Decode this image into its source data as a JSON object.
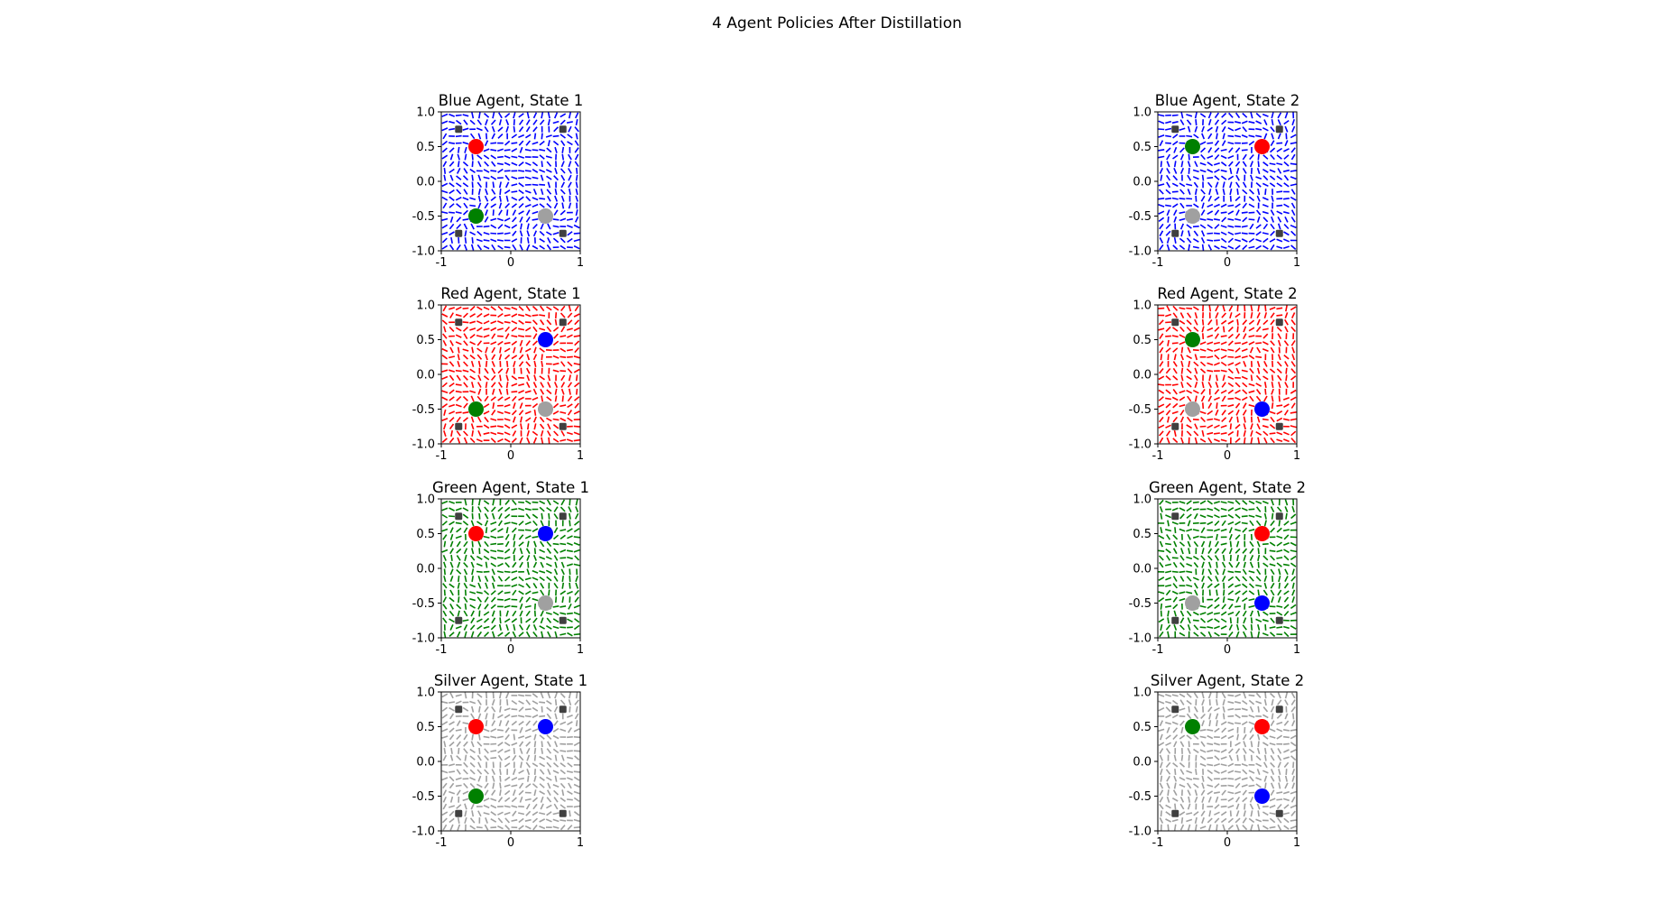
{
  "figure": {
    "title": "4 Agent Policies After Distillation",
    "colors": {
      "blue": "#0000ff",
      "red": "#ff0000",
      "green": "#008000",
      "silver": "#a0a0a0",
      "obstacle": "#404040"
    }
  },
  "chart_data": [
    {
      "type": "quiver",
      "title": "Blue Agent, State 1",
      "field_color": "blue",
      "xlim": [
        -1,
        1
      ],
      "ylim": [
        -1,
        1
      ],
      "xticks": [
        "-1",
        "0",
        "1"
      ],
      "yticks": [
        "1.0",
        "0.5",
        "0.0",
        "-0.5",
        "-1.0"
      ],
      "agents": [
        {
          "color": "red",
          "x": -0.5,
          "y": 0.5
        },
        {
          "color": "green",
          "x": -0.5,
          "y": -0.5
        },
        {
          "color": "silver",
          "x": 0.5,
          "y": -0.5
        }
      ],
      "obstacles": [
        [
          -0.75,
          0.75
        ],
        [
          0.75,
          0.75
        ],
        [
          -0.75,
          -0.75
        ],
        [
          0.75,
          -0.75
        ]
      ]
    },
    {
      "type": "quiver",
      "title": "Blue Agent, State 2",
      "field_color": "blue",
      "xlim": [
        -1,
        1
      ],
      "ylim": [
        -1,
        1
      ],
      "xticks": [
        "-1",
        "0",
        "1"
      ],
      "yticks": [
        "1.0",
        "0.5",
        "0.0",
        "-0.5",
        "-1.0"
      ],
      "agents": [
        {
          "color": "green",
          "x": -0.5,
          "y": 0.5
        },
        {
          "color": "red",
          "x": 0.5,
          "y": 0.5
        },
        {
          "color": "silver",
          "x": -0.5,
          "y": -0.5
        }
      ],
      "obstacles": [
        [
          -0.75,
          0.75
        ],
        [
          0.75,
          0.75
        ],
        [
          -0.75,
          -0.75
        ],
        [
          0.75,
          -0.75
        ]
      ]
    },
    {
      "type": "quiver",
      "title": "Red Agent, State 1",
      "field_color": "red",
      "xlim": [
        -1,
        1
      ],
      "ylim": [
        -1,
        1
      ],
      "xticks": [
        "-1",
        "0",
        "1"
      ],
      "yticks": [
        "1.0",
        "0.5",
        "0.0",
        "-0.5",
        "-1.0"
      ],
      "agents": [
        {
          "color": "blue",
          "x": 0.5,
          "y": 0.5
        },
        {
          "color": "green",
          "x": -0.5,
          "y": -0.5
        },
        {
          "color": "silver",
          "x": 0.5,
          "y": -0.5
        }
      ],
      "obstacles": [
        [
          -0.75,
          0.75
        ],
        [
          0.75,
          0.75
        ],
        [
          -0.75,
          -0.75
        ],
        [
          0.75,
          -0.75
        ]
      ]
    },
    {
      "type": "quiver",
      "title": "Red Agent, State 2",
      "field_color": "red",
      "xlim": [
        -1,
        1
      ],
      "ylim": [
        -1,
        1
      ],
      "xticks": [
        "-1",
        "0",
        "1"
      ],
      "yticks": [
        "1.0",
        "0.5",
        "0.0",
        "-0.5",
        "-1.0"
      ],
      "agents": [
        {
          "color": "green",
          "x": -0.5,
          "y": 0.5
        },
        {
          "color": "silver",
          "x": -0.5,
          "y": -0.5
        },
        {
          "color": "blue",
          "x": 0.5,
          "y": -0.5
        }
      ],
      "obstacles": [
        [
          -0.75,
          0.75
        ],
        [
          0.75,
          0.75
        ],
        [
          -0.75,
          -0.75
        ],
        [
          0.75,
          -0.75
        ]
      ]
    },
    {
      "type": "quiver",
      "title": "Green Agent, State 1",
      "field_color": "green",
      "xlim": [
        -1,
        1
      ],
      "ylim": [
        -1,
        1
      ],
      "xticks": [
        "-1",
        "0",
        "1"
      ],
      "yticks": [
        "1.0",
        "0.5",
        "0.0",
        "-0.5",
        "-1.0"
      ],
      "agents": [
        {
          "color": "red",
          "x": -0.5,
          "y": 0.5
        },
        {
          "color": "blue",
          "x": 0.5,
          "y": 0.5
        },
        {
          "color": "silver",
          "x": 0.5,
          "y": -0.5
        }
      ],
      "obstacles": [
        [
          -0.75,
          0.75
        ],
        [
          0.75,
          0.75
        ],
        [
          -0.75,
          -0.75
        ],
        [
          0.75,
          -0.75
        ]
      ]
    },
    {
      "type": "quiver",
      "title": "Green Agent, State 2",
      "field_color": "green",
      "xlim": [
        -1,
        1
      ],
      "ylim": [
        -1,
        1
      ],
      "xticks": [
        "-1",
        "0",
        "1"
      ],
      "yticks": [
        "1.0",
        "0.5",
        "0.0",
        "-0.5",
        "-1.0"
      ],
      "agents": [
        {
          "color": "red",
          "x": 0.5,
          "y": 0.5
        },
        {
          "color": "silver",
          "x": -0.5,
          "y": -0.5
        },
        {
          "color": "blue",
          "x": 0.5,
          "y": -0.5
        }
      ],
      "obstacles": [
        [
          -0.75,
          0.75
        ],
        [
          0.75,
          0.75
        ],
        [
          -0.75,
          -0.75
        ],
        [
          0.75,
          -0.75
        ]
      ]
    },
    {
      "type": "quiver",
      "title": "Silver Agent, State 1",
      "field_color": "silver",
      "xlim": [
        -1,
        1
      ],
      "ylim": [
        -1,
        1
      ],
      "xticks": [
        "-1",
        "0",
        "1"
      ],
      "yticks": [
        "1.0",
        "0.5",
        "0.0",
        "-0.5",
        "-1.0"
      ],
      "agents": [
        {
          "color": "red",
          "x": -0.5,
          "y": 0.5
        },
        {
          "color": "blue",
          "x": 0.5,
          "y": 0.5
        },
        {
          "color": "green",
          "x": -0.5,
          "y": -0.5
        }
      ],
      "obstacles": [
        [
          -0.75,
          0.75
        ],
        [
          0.75,
          0.75
        ],
        [
          -0.75,
          -0.75
        ],
        [
          0.75,
          -0.75
        ]
      ]
    },
    {
      "type": "quiver",
      "title": "Silver Agent, State 2",
      "field_color": "silver",
      "xlim": [
        -1,
        1
      ],
      "ylim": [
        -1,
        1
      ],
      "xticks": [
        "-1",
        "0",
        "1"
      ],
      "yticks": [
        "1.0",
        "0.5",
        "0.0",
        "-0.5",
        "-1.0"
      ],
      "agents": [
        {
          "color": "green",
          "x": -0.5,
          "y": 0.5
        },
        {
          "color": "red",
          "x": 0.5,
          "y": 0.5
        },
        {
          "color": "blue",
          "x": 0.5,
          "y": -0.5
        }
      ],
      "obstacles": [
        [
          -0.75,
          0.75
        ],
        [
          0.75,
          0.75
        ],
        [
          -0.75,
          -0.75
        ],
        [
          0.75,
          -0.75
        ]
      ]
    }
  ]
}
